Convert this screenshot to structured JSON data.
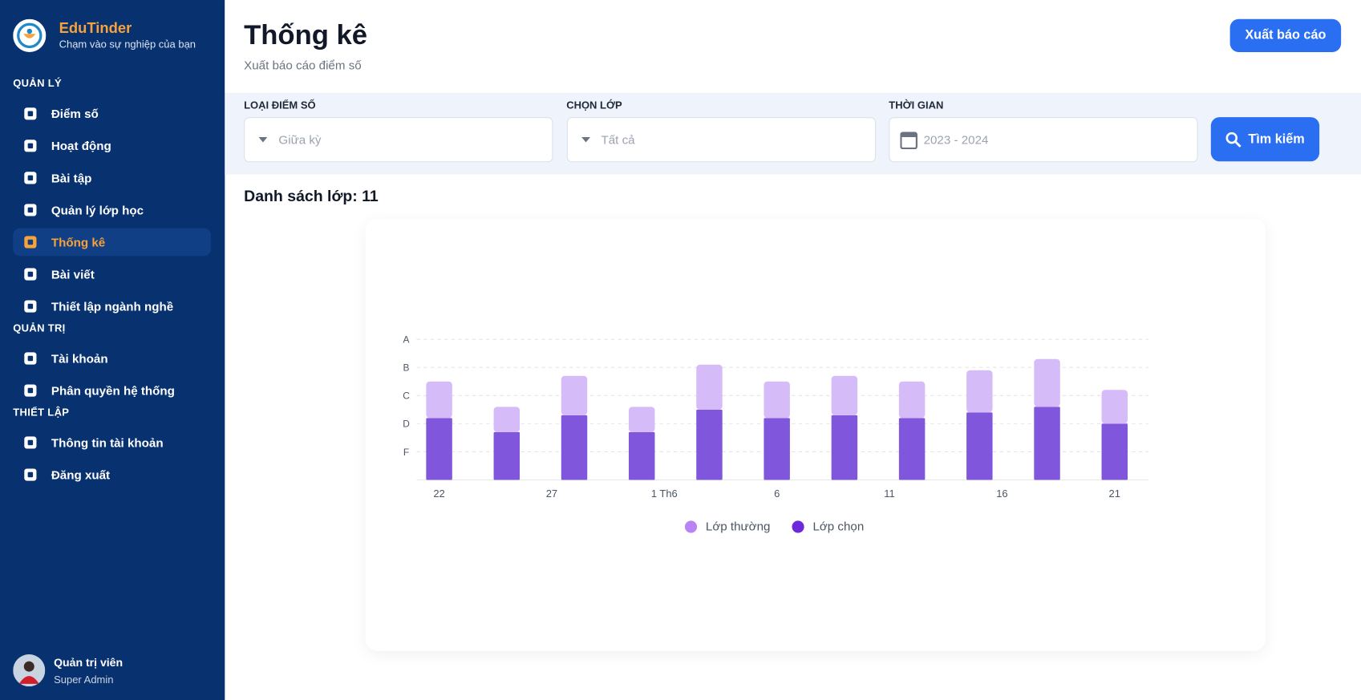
{
  "sidebar": {
    "brand": "EduTinder",
    "tagline": "Chạm vào sự nghiệp của bạn",
    "sections": [
      {
        "title": "QUẢN LÝ",
        "items": [
          "Điểm số",
          "Hoạt động",
          "Bài tập",
          "Quản lý lớp học",
          "Thống kê",
          "Bài viết",
          "Thiết lập ngành nghề"
        ]
      },
      {
        "title": "QUẢN TRỊ",
        "items": [
          "Tài khoản",
          "Phân quyền hệ thống"
        ]
      },
      {
        "title": "THIẾT LẬP",
        "items": [
          "Thông tin tài khoản",
          "Đăng xuất"
        ]
      }
    ],
    "active": "Thống kê",
    "user": {
      "name": "Quản trị viên",
      "role": "Super Admin"
    }
  },
  "header": {
    "title": "Thống kê",
    "subtitle": "Xuất báo cáo điểm số",
    "export_button": "Xuất báo cáo"
  },
  "filters": [
    {
      "label": "LOẠI ĐIỂM SỐ",
      "value": "Giữa kỳ"
    },
    {
      "label": "CHỌN LỚP",
      "value": "Tất cả"
    },
    {
      "label": "THỜI GIAN",
      "value": "2023 - 2024"
    }
  ],
  "search_button": "Tìm kiếm",
  "class_count": "Danh sách lớp: 11",
  "chart_data": {
    "type": "stacked-bar",
    "x": [
      0,
      3,
      6,
      9,
      12,
      15,
      18,
      21,
      24,
      27,
      30
    ],
    "xlim": [
      -1,
      31.5
    ],
    "xticks": [
      {
        "value": 0,
        "label": "22"
      },
      {
        "value": 5,
        "label": "27"
      },
      {
        "value": 10,
        "label": "1 Th6"
      },
      {
        "value": 15,
        "label": "6"
      },
      {
        "value": 20,
        "label": "11"
      },
      {
        "value": 25,
        "label": "16"
      },
      {
        "value": 30,
        "label": "21"
      }
    ],
    "ylim": [
      0,
      5
    ],
    "yticks": [
      {
        "value": 1,
        "label": "F"
      },
      {
        "value": 2,
        "label": "D"
      },
      {
        "value": 3,
        "label": "C"
      },
      {
        "value": 4,
        "label": "B"
      },
      {
        "value": 5,
        "label": "A"
      }
    ],
    "grid": true,
    "series": [
      {
        "name": "Lớp chọn",
        "color": "#7f56dc",
        "values": [
          2.2,
          1.7,
          2.3,
          1.7,
          2.5,
          2.2,
          2.3,
          2.2,
          2.4,
          2.6,
          2.0
        ]
      },
      {
        "name": "Lớp thường",
        "color": "#d5bcf8",
        "values": [
          1.3,
          0.9,
          1.4,
          0.9,
          1.6,
          1.3,
          1.4,
          1.3,
          1.5,
          1.7,
          1.2
        ]
      }
    ],
    "legend_order": [
      1,
      0
    ]
  }
}
